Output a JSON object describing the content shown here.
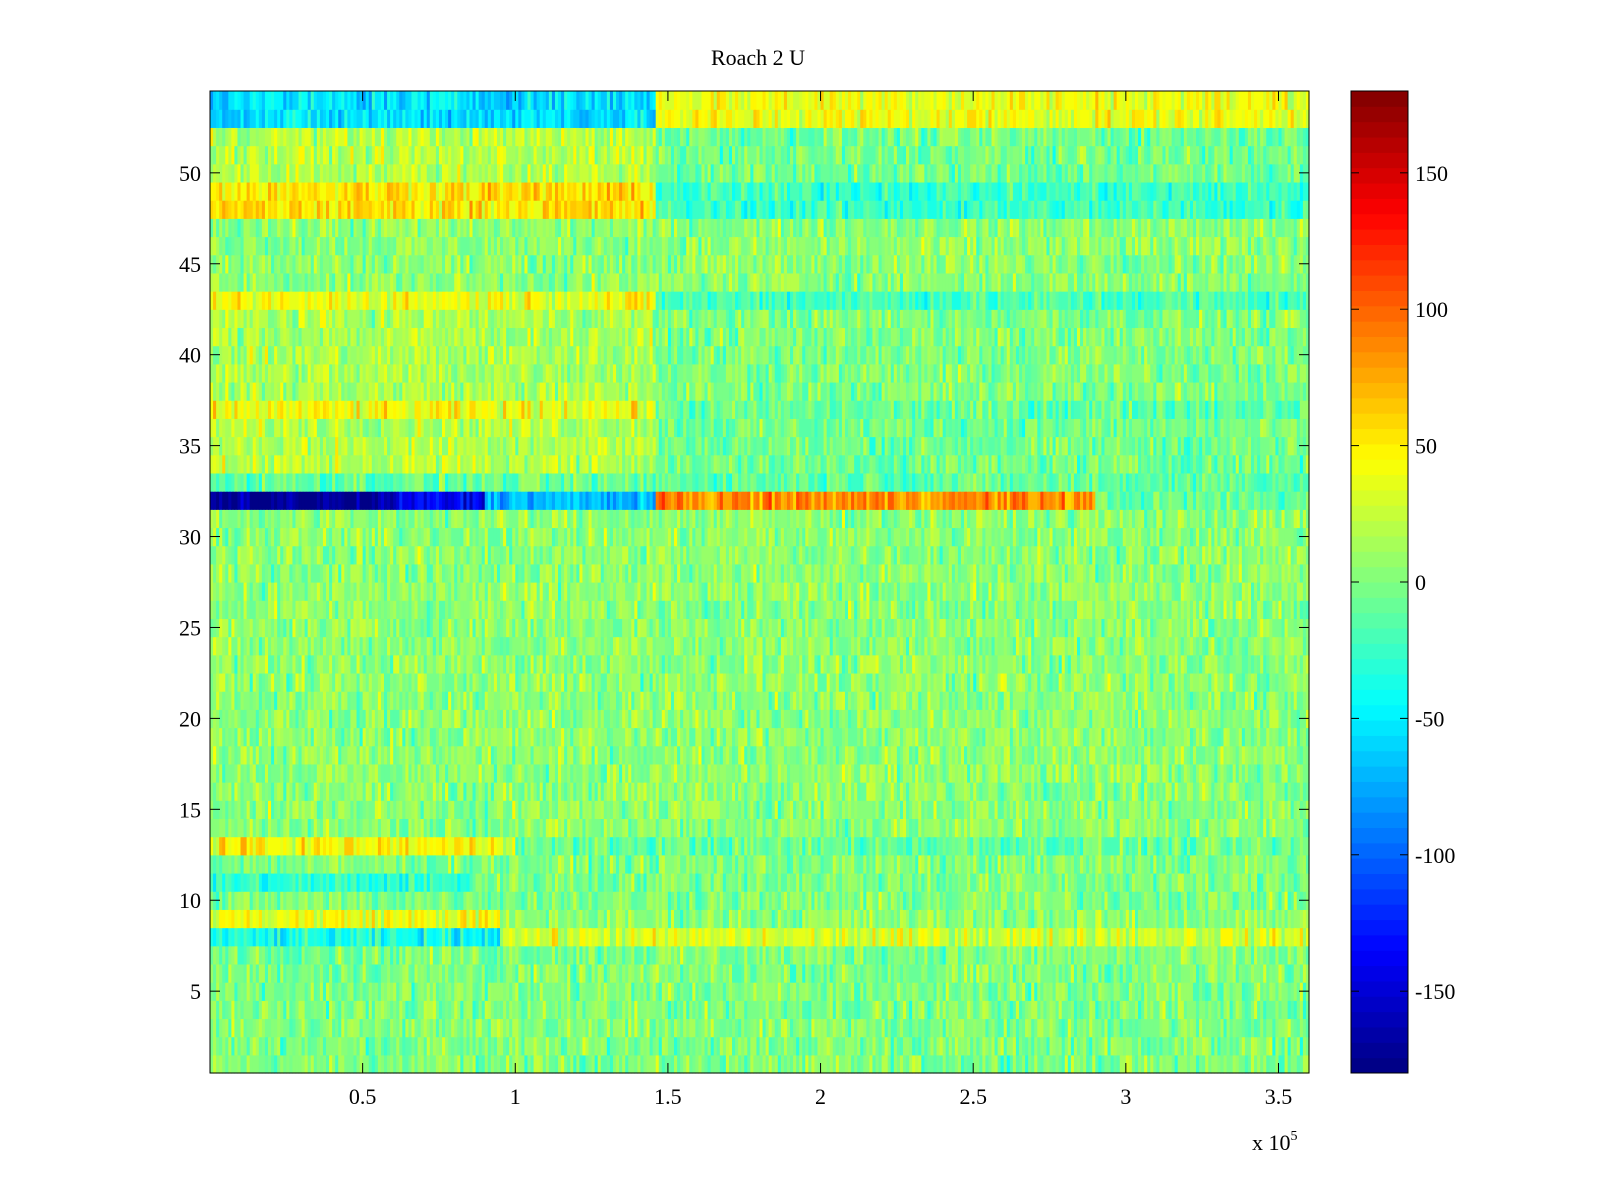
{
  "chart_data": {
    "type": "heatmap",
    "title": "Roach 2 U",
    "xlabel": "",
    "ylabel": "",
    "x_multiplier_label": "x 10",
    "x_multiplier_exponent": "5",
    "xlim": [
      0,
      360000
    ],
    "ylim": [
      0.5,
      54.5
    ],
    "x_ticks": [
      {
        "value": 0.5,
        "label": "0.5"
      },
      {
        "value": 1,
        "label": "1"
      },
      {
        "value": 1.5,
        "label": "1.5"
      },
      {
        "value": 2,
        "label": "2"
      },
      {
        "value": 2.5,
        "label": "2.5"
      },
      {
        "value": 3,
        "label": "3"
      },
      {
        "value": 3.5,
        "label": "3.5"
      }
    ],
    "y_ticks": [
      {
        "value": 5,
        "label": "5"
      },
      {
        "value": 10,
        "label": "10"
      },
      {
        "value": 15,
        "label": "15"
      },
      {
        "value": 20,
        "label": "20"
      },
      {
        "value": 25,
        "label": "25"
      },
      {
        "value": 30,
        "label": "30"
      },
      {
        "value": 35,
        "label": "35"
      },
      {
        "value": 40,
        "label": "40"
      },
      {
        "value": 45,
        "label": "45"
      },
      {
        "value": 50,
        "label": "50"
      }
    ],
    "colorbar": {
      "colormap": "jet",
      "clim": [
        -180,
        180
      ],
      "ticks": [
        {
          "value": 150,
          "label": "150"
        },
        {
          "value": 100,
          "label": "100"
        },
        {
          "value": 50,
          "label": "50"
        },
        {
          "value": 0,
          "label": "0"
        },
        {
          "value": -50,
          "label": "-50"
        },
        {
          "value": -100,
          "label": "-100"
        },
        {
          "value": -150,
          "label": "-150"
        }
      ]
    },
    "rows": 54,
    "row_profiles": [
      {
        "rows": [
          1,
          7
        ],
        "segments": [
          {
            "x": [
              0,
              360000
            ],
            "mean": 0
          }
        ]
      },
      {
        "rows": [
          8,
          8
        ],
        "segments": [
          {
            "x": [
              0,
              95000
            ],
            "mean": -40
          },
          {
            "x": [
              95000,
              360000
            ],
            "mean": 30
          }
        ]
      },
      {
        "rows": [
          9,
          9
        ],
        "segments": [
          {
            "x": [
              0,
              95000
            ],
            "mean": 40
          },
          {
            "x": [
              95000,
              360000
            ],
            "mean": 5
          }
        ]
      },
      {
        "rows": [
          10,
          10
        ],
        "segments": [
          {
            "x": [
              0,
              360000
            ],
            "mean": 0
          }
        ]
      },
      {
        "rows": [
          11,
          11
        ],
        "segments": [
          {
            "x": [
              0,
              85000
            ],
            "mean": -30
          },
          {
            "x": [
              85000,
              360000
            ],
            "mean": 0
          }
        ]
      },
      {
        "rows": [
          12,
          12
        ],
        "segments": [
          {
            "x": [
              0,
              360000
            ],
            "mean": 0
          }
        ]
      },
      {
        "rows": [
          13,
          13
        ],
        "segments": [
          {
            "x": [
              0,
              100000
            ],
            "mean": 45
          },
          {
            "x": [
              100000,
              360000
            ],
            "mean": -10
          }
        ]
      },
      {
        "rows": [
          14,
          31
        ],
        "segments": [
          {
            "x": [
              0,
              360000
            ],
            "mean": 5
          }
        ]
      },
      {
        "rows": [
          32,
          32
        ],
        "segments": [
          {
            "x": [
              0,
              60000
            ],
            "mean": -175
          },
          {
            "x": [
              60000,
              90000
            ],
            "mean": -140
          },
          {
            "x": [
              90000,
              146000
            ],
            "mean": -70
          },
          {
            "x": [
              146000,
              290000
            ],
            "mean": 85
          },
          {
            "x": [
              290000,
              360000
            ],
            "mean": -10
          }
        ]
      },
      {
        "rows": [
          33,
          33
        ],
        "segments": [
          {
            "x": [
              0,
              360000
            ],
            "mean": -10
          }
        ]
      },
      {
        "rows": [
          34,
          36
        ],
        "segments": [
          {
            "x": [
              0,
              146000
            ],
            "mean": 20
          },
          {
            "x": [
              146000,
              360000
            ],
            "mean": -5
          }
        ]
      },
      {
        "rows": [
          37,
          37
        ],
        "segments": [
          {
            "x": [
              0,
              146000
            ],
            "mean": 40
          },
          {
            "x": [
              146000,
              360000
            ],
            "mean": -10
          }
        ]
      },
      {
        "rows": [
          38,
          42
        ],
        "segments": [
          {
            "x": [
              0,
              146000
            ],
            "mean": 15
          },
          {
            "x": [
              146000,
              360000
            ],
            "mean": 0
          }
        ]
      },
      {
        "rows": [
          43,
          43
        ],
        "segments": [
          {
            "x": [
              0,
              146000
            ],
            "mean": 40
          },
          {
            "x": [
              146000,
              360000
            ],
            "mean": -20
          }
        ]
      },
      {
        "rows": [
          44,
          47
        ],
        "segments": [
          {
            "x": [
              0,
              360000
            ],
            "mean": 5
          }
        ]
      },
      {
        "rows": [
          48,
          49
        ],
        "segments": [
          {
            "x": [
              0,
              146000
            ],
            "mean": 55
          },
          {
            "x": [
              146000,
              360000
            ],
            "mean": -25
          }
        ]
      },
      {
        "rows": [
          50,
          52
        ],
        "segments": [
          {
            "x": [
              0,
              146000
            ],
            "mean": 20
          },
          {
            "x": [
              146000,
              360000
            ],
            "mean": -5
          }
        ]
      },
      {
        "rows": [
          53,
          54
        ],
        "segments": [
          {
            "x": [
              0,
              146000
            ],
            "mean": -55
          },
          {
            "x": [
              146000,
              360000
            ],
            "mean": 40
          }
        ]
      }
    ]
  }
}
